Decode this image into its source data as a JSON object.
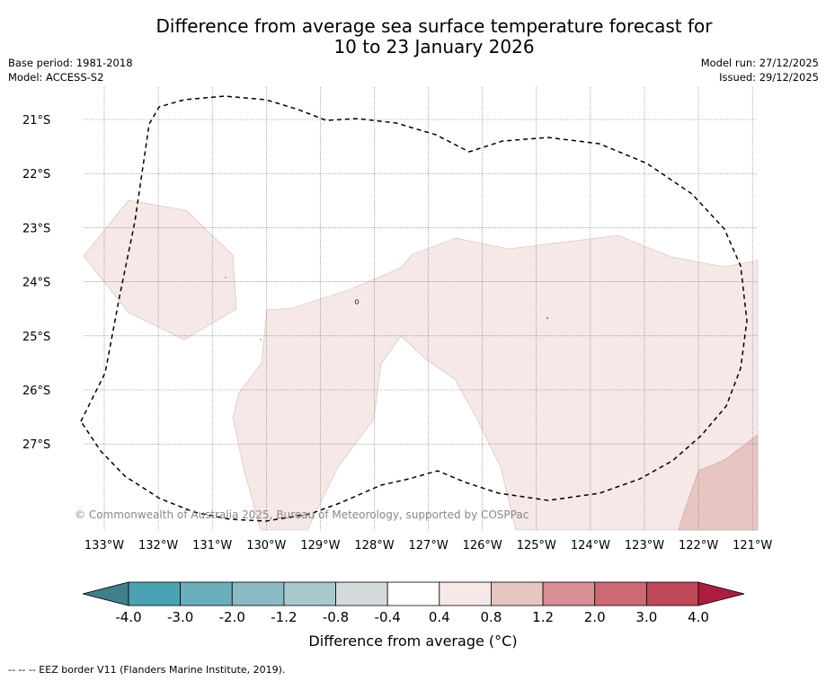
{
  "title": {
    "line1": "Difference from average sea surface temperature forecast for",
    "line2": "10 to 23 January 2026"
  },
  "meta": {
    "base_period": "Base period: 1981-2018",
    "model": "Model: ACCESS-S2",
    "model_run": "Model run: 27/12/2025",
    "issued": "Issued: 29/12/2025"
  },
  "map": {
    "lat_labels": [
      "21°S",
      "22°S",
      "23°S",
      "24°S",
      "25°S",
      "26°S",
      "27°S"
    ],
    "lon_labels": [
      "133°W",
      "132°W",
      "131°W",
      "130°W",
      "129°W",
      "128°W",
      "127°W",
      "126°W",
      "125°W",
      "124°W",
      "123°W",
      "122°W",
      "121°W"
    ],
    "copyright": "© Commonwealth of Australia 2025, Bureau of Meteorology, supported by COSPPac"
  },
  "colorbar": {
    "tick_labels": [
      "-4.0",
      "-3.0",
      "-2.0",
      "-1.2",
      "-0.8",
      "-0.4",
      "0.4",
      "0.8",
      "1.2",
      "2.0",
      "3.0",
      "4.0"
    ],
    "colors": [
      "#3f7f8a",
      "#4aa3b3",
      "#6cafbc",
      "#8bbac5",
      "#a8c8cc",
      "#d4d9dc",
      "#ffffff",
      "#f5e8e7",
      "#e7c6c2",
      "#d98f95",
      "#cd6a75",
      "#c04858",
      "#ad1e3c"
    ],
    "label": "Difference from average (°C)"
  },
  "footnote": "--  --  -- EEZ border V11 (Flanders Marine Institute, 2019)."
}
